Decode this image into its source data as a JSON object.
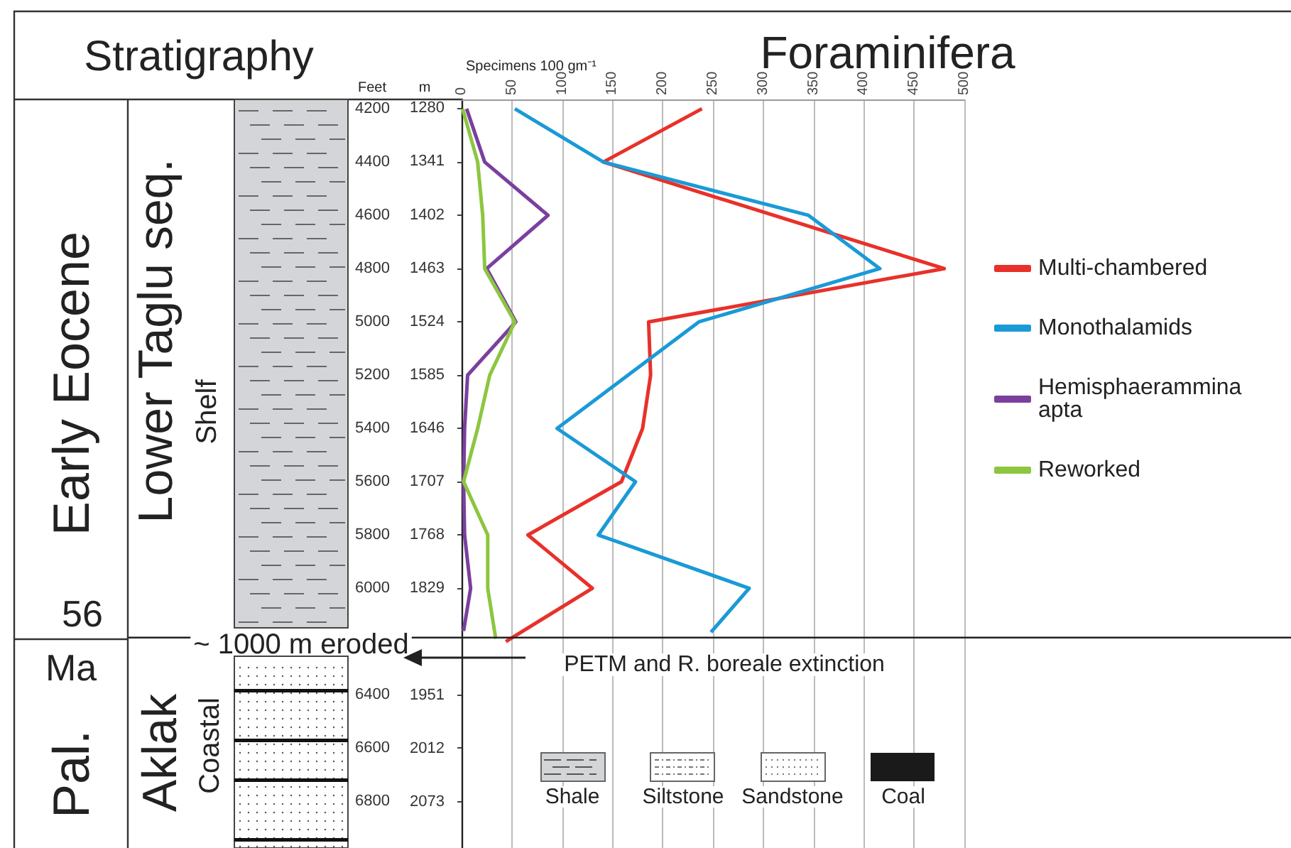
{
  "chart_data": {
    "type": "line",
    "title": "Foraminifera",
    "xlabel": "Specimens 100 gm⁻¹",
    "ylabel": "Feet",
    "y2label": "m",
    "orientation": "horizontal",
    "xlim": [
      0,
      500
    ],
    "xticks": [
      0,
      50,
      100,
      150,
      200,
      250,
      300,
      350,
      400,
      450,
      500
    ],
    "ylim": [
      6975,
      4165
    ],
    "yticks": [
      4200,
      4400,
      4600,
      4800,
      5000,
      5200,
      5400,
      5600,
      5800,
      6000,
      6400,
      6600,
      6800
    ],
    "y2lim": [
      2126,
      1270
    ],
    "y2ticks": [
      1280,
      1341,
      1402,
      1463,
      1524,
      1585,
      1646,
      1707,
      1768,
      1829,
      1951,
      2012,
      2073
    ],
    "grid": "x",
    "legend": "right",
    "ref_lines": [
      {
        "axis": "y",
        "value": 6185
      }
    ],
    "marker": "none",
    "annotations": [
      "Stratigraphy",
      "Early Eocene",
      "Lower Taglu seq.",
      "Shelf",
      "56",
      "Ma",
      "Pal.",
      "Aklak",
      "Coastal",
      "~ 1000 m eroded",
      "PETM and R. boreale extinction",
      "Shale",
      "Siltstone",
      "Sandstone",
      "Coal"
    ],
    "series": [
      {
        "name": "Multi-chambered",
        "color": "#e8312a",
        "x": [
          4200,
          4400,
          4800,
          5000,
          5200,
          5400,
          5600,
          5800,
          6000,
          6200
        ],
        "values": [
          239,
          141,
          480,
          186,
          188,
          180,
          159,
          66,
          130,
          44
        ]
      },
      {
        "name": "Monothalamids",
        "color": "#1a9ad6",
        "x": [
          4200,
          4400,
          4600,
          4800,
          5000,
          5400,
          5600,
          5800,
          6000,
          6165
        ],
        "values": [
          53,
          141,
          345,
          416,
          236,
          95,
          173,
          136,
          286,
          248
        ]
      },
      {
        "name": "Hemisphaerammina apta",
        "color": "#7b3f9e",
        "x": [
          4200,
          4400,
          4600,
          4800,
          5000,
          5200,
          5400,
          5600,
          5800,
          6000,
          6160
        ],
        "values": [
          5,
          23,
          86,
          25,
          54,
          6,
          3,
          2,
          3,
          9,
          2
        ]
      },
      {
        "name": "Reworked",
        "color": "#8cc63f",
        "x": [
          4200,
          4400,
          4600,
          4800,
          5000,
          5200,
          5400,
          5600,
          5800,
          6000,
          6190
        ],
        "values": [
          1,
          16,
          21,
          23,
          53,
          28,
          16,
          2,
          26,
          26,
          34
        ]
      }
    ]
  }
}
